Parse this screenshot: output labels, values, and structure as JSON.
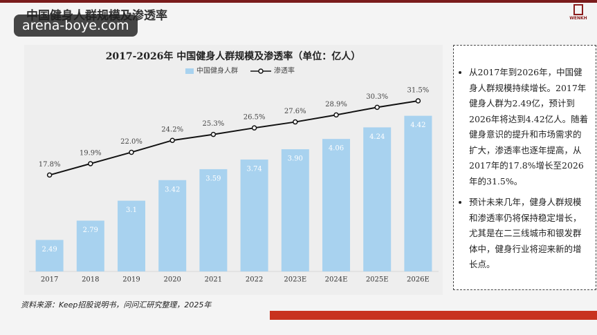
{
  "header": {
    "title": "中国健身人群规模及渗透率",
    "logo": "WENKH"
  },
  "watermark": "arena-boye.com",
  "chart_data": {
    "type": "bar",
    "title": "2017-2026年 中国健身人群规模及渗透率（单位：亿人）",
    "categories": [
      "2017",
      "2018",
      "2019",
      "2020",
      "2021",
      "2022",
      "2023E",
      "2024E",
      "2025E",
      "2026E"
    ],
    "series": [
      {
        "name": "中国健身人群",
        "color": "#a8d2ef",
        "values": [
          2.49,
          2.79,
          3.1,
          3.42,
          3.59,
          3.74,
          3.9,
          4.06,
          4.24,
          4.42
        ],
        "value_labels": [
          "2.49",
          "2.79",
          "3.1",
          "3.42",
          "3.59",
          "3.74",
          "3.90",
          "4.06",
          "4.24",
          "4.42"
        ]
      },
      {
        "name": "渗透率",
        "color": "#111111",
        "type": "line",
        "axis": "y2",
        "values": [
          17.8,
          19.9,
          22.0,
          24.2,
          25.3,
          26.5,
          27.6,
          28.9,
          30.3,
          31.5
        ],
        "value_labels": [
          "17.8%",
          "19.9%",
          "22.0%",
          "24.2%",
          "25.3%",
          "26.5%",
          "27.6%",
          "28.9%",
          "30.3%",
          "31.5%"
        ]
      }
    ],
    "ylim": [
      2,
      5.2
    ],
    "y2lim": [
      0,
      38
    ],
    "legend": "top"
  },
  "bullets": [
    "从2017年到2026年，中国健身人群规模持续增长。2017年健身人群为2.49亿，预计到2026年将达到4.42亿人。随着健身意识的提升和市场需求的扩大，渗透率也逐年提高，从2017年的17.8%增长至2026年的31.5%。",
    "预计未来几年，健身人群规模和渗透率仍将保持稳定增长，尤其是在二三线城市和银发群体中，健身行业将迎来新的增长点。"
  ],
  "source": "资料来源：Keep招股说明书，问问汇研究整理，2025年"
}
